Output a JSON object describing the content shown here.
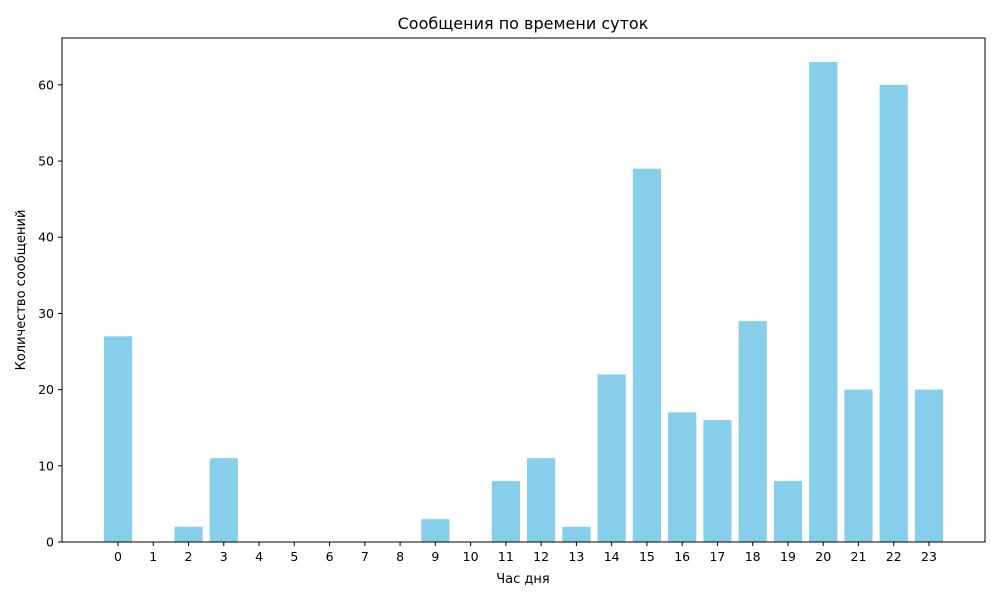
{
  "chart_data": {
    "type": "bar",
    "title": "Сообщения по времени суток",
    "xlabel": "Час дня",
    "ylabel": "Количество сообщений",
    "categories": [
      "0",
      "1",
      "2",
      "3",
      "4",
      "5",
      "6",
      "7",
      "8",
      "9",
      "10",
      "11",
      "12",
      "13",
      "14",
      "15",
      "16",
      "17",
      "18",
      "19",
      "20",
      "21",
      "22",
      "23"
    ],
    "values": [
      27,
      0,
      2,
      11,
      0,
      0,
      0,
      0,
      0,
      3,
      0,
      8,
      11,
      2,
      22,
      49,
      17,
      16,
      29,
      8,
      63,
      20,
      60,
      20
    ],
    "ylim": [
      0,
      66.15
    ],
    "yticks": [
      0,
      10,
      20,
      30,
      40,
      50,
      60
    ],
    "bar_color": "#87ceeb",
    "grid": false,
    "legend": "none"
  }
}
